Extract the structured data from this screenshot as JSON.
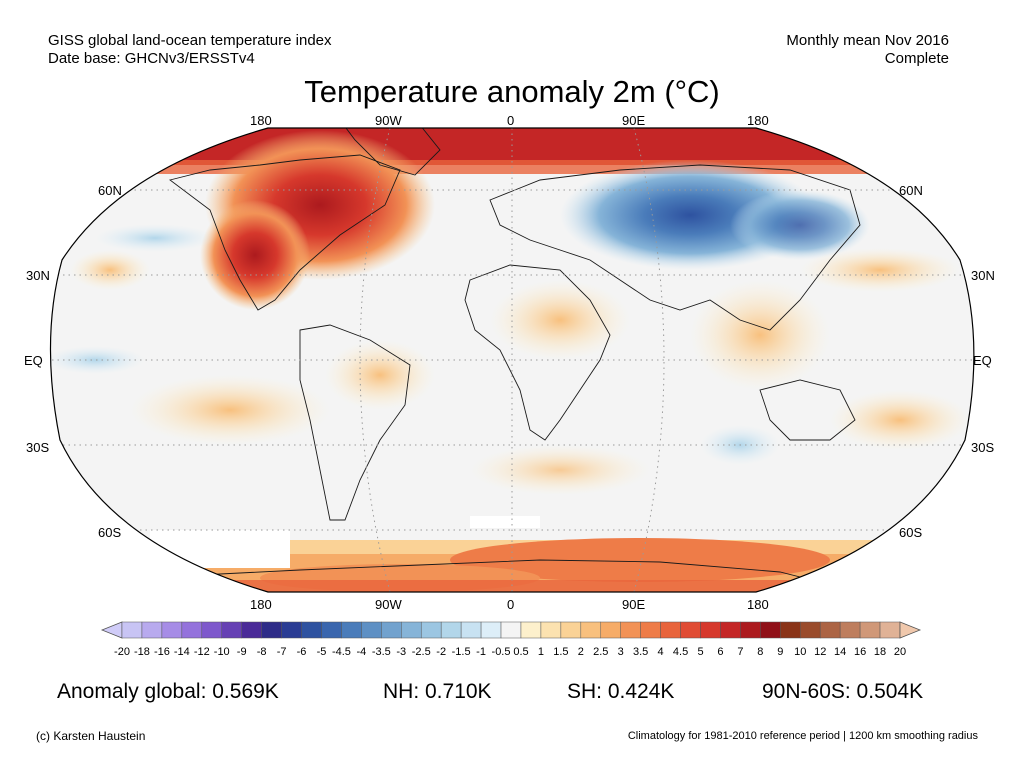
{
  "header": {
    "left_line1": "GISS global land-ocean temperature index",
    "left_line2": "Date base: GHCNv3/ERSSTv4",
    "right_line1": "Monthly mean Nov 2016",
    "right_line2": "Complete"
  },
  "title": "Temperature anomaly 2m (°C)",
  "longitude_labels": [
    "180",
    "90W",
    "0",
    "90E",
    "180"
  ],
  "latitude_labels": {
    "left": [
      "60N",
      "30N",
      "EQ",
      "30S",
      "60S"
    ],
    "right": [
      "60N",
      "30N",
      "EQ",
      "30S",
      "60S"
    ]
  },
  "colorbar": {
    "labels": [
      "-20",
      "-18",
      "-16",
      "-14",
      "-12",
      "-10",
      "-9",
      "-8",
      "-7",
      "-6",
      "-5",
      "-4.5",
      "-4",
      "-3.5",
      "-3",
      "-2.5",
      "-2",
      "-1.5",
      "-1",
      "-0.5",
      "0.5",
      "1",
      "1.5",
      "2",
      "2.5",
      "3",
      "3.5",
      "4",
      "4.5",
      "5",
      "6",
      "7",
      "8",
      "9",
      "10",
      "12",
      "14",
      "16",
      "18",
      "20"
    ],
    "colors": [
      "#c8c4f4",
      "#b8aaee",
      "#a68ce6",
      "#9472dc",
      "#7e58cc",
      "#6640b4",
      "#4a2a98",
      "#2e2c88",
      "#2a3c94",
      "#2e52a0",
      "#3a66ae",
      "#4a7cba",
      "#5e90c4",
      "#72a2ce",
      "#86b4d8",
      "#9cc6e2",
      "#b2d6ea",
      "#c8e2f2",
      "#ddeef8",
      "#f4f4f4",
      "#fdf0cc",
      "#fce2b0",
      "#fad296",
      "#f8c07e",
      "#f6ac68",
      "#f29256",
      "#ee7c48",
      "#e8643c",
      "#e04c34",
      "#d6382c",
      "#c42626",
      "#ac1a1e",
      "#901018",
      "#8a3418",
      "#9a4c2c",
      "#ac6444",
      "#be7e5e",
      "#d09878",
      "#e0b296"
    ],
    "low_color": "#d0ccf8",
    "high_color": "#f0c8ac"
  },
  "stats": {
    "global": "Anomaly global: 0.569K",
    "nh": "NH: 0.710K",
    "sh": "SH: 0.424K",
    "arctic": "90N-60S: 0.504K"
  },
  "footer": {
    "left": "(c) Karsten Haustein",
    "right": "Climatology for 1981-2010 reference period | 1200 km smoothing radius"
  }
}
